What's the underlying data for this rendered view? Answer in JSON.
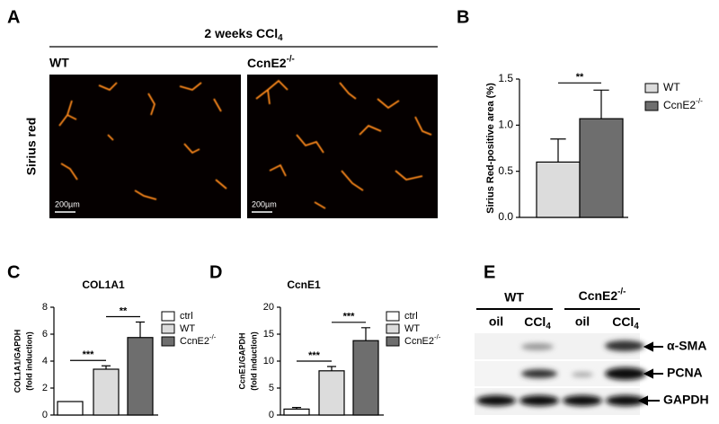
{
  "panel_a": {
    "letter": "A",
    "title": "2 weeks CCl4",
    "groups": [
      "WT",
      "CcnE2-/-"
    ],
    "stain": "Sirius red",
    "scale_bars": [
      "200µm",
      "200µm"
    ]
  },
  "chart_data": [
    {
      "type": "bar",
      "panel": "B",
      "ylabel": "Sirius Red-positive area (%)",
      "categories": [
        "WT",
        "CcnE2-/-"
      ],
      "values": [
        0.6,
        1.07
      ],
      "errors": [
        0.25,
        0.31
      ],
      "colors": [
        "#dcdcdc",
        "#6e6e6e"
      ],
      "ylim": [
        0,
        1.5
      ],
      "yticks": [
        {
          "value": 0,
          "label": "0.0"
        },
        {
          "value": 0.5,
          "label": "0.5"
        },
        {
          "value": 1,
          "label": "1.0"
        },
        {
          "value": 1.5,
          "label": "1.5"
        }
      ],
      "significance": [
        "**"
      ]
    },
    {
      "type": "bar",
      "panel": "C",
      "title": "COL1A1",
      "ylabel": [
        "COL1A1/GAPDH",
        "(fold induction)"
      ],
      "categories": [
        "ctrl",
        "WT",
        "CcnE2-/-"
      ],
      "values": [
        1.0,
        3.4,
        5.75
      ],
      "errors": [
        null,
        0.25,
        1.15
      ],
      "colors": [
        "#ffffff",
        "#dcdcdc",
        "#6e6e6e"
      ],
      "ylim": [
        0,
        8
      ],
      "yticks": [
        0,
        2,
        4,
        6,
        8
      ],
      "significance": [
        "***",
        "**"
      ]
    },
    {
      "type": "bar",
      "panel": "D",
      "title": "CcnE1",
      "ylabel": [
        "CcnE1/GAPDH",
        "(fold induction)"
      ],
      "categories": [
        "ctrl",
        "WT",
        "CcnE2-/-"
      ],
      "values": [
        1.1,
        8.2,
        13.8
      ],
      "errors": [
        0.3,
        0.8,
        2.4
      ],
      "colors": [
        "#ffffff",
        "#dcdcdc",
        "#6e6e6e"
      ],
      "ylim": [
        0,
        20
      ],
      "yticks": [
        0,
        5,
        10,
        15,
        20
      ],
      "significance": [
        "***",
        "***"
      ]
    }
  ],
  "panel_e": {
    "letter": "E",
    "groups": [
      "WT",
      "CcnE2-/-"
    ],
    "lanes": [
      "oil",
      "CCl4",
      "oil",
      "CCl4"
    ],
    "proteins": [
      "α-SMA",
      "PCNA",
      "GAPDH"
    ]
  }
}
